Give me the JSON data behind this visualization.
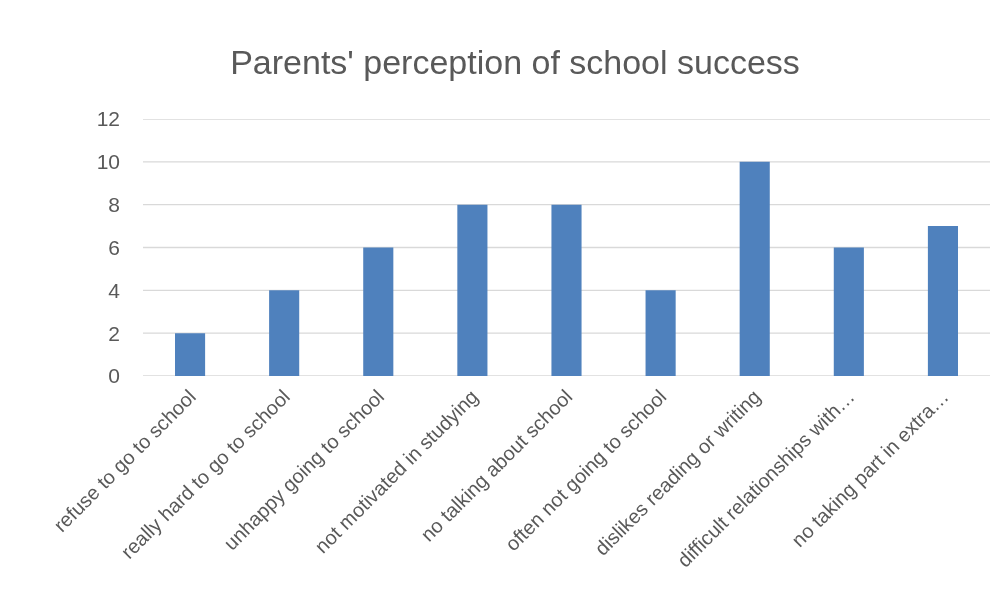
{
  "chart_data": {
    "type": "bar",
    "title": "Parents' perception of school success",
    "categories": [
      "refuse to go to school",
      "really hard to go to school",
      "unhappy going to school",
      "not motivated in studying",
      "no talking about school",
      "often not going to school",
      "dislikes reading or writing",
      "difficult relationships with…",
      "no taking part in extra…"
    ],
    "values": [
      2,
      4,
      6,
      8,
      8,
      4,
      10,
      6,
      7
    ],
    "color": "#4f81bd",
    "ylim": [
      0,
      12
    ],
    "yticks": [
      0,
      2,
      4,
      6,
      8,
      10,
      12
    ],
    "grid": "y"
  }
}
